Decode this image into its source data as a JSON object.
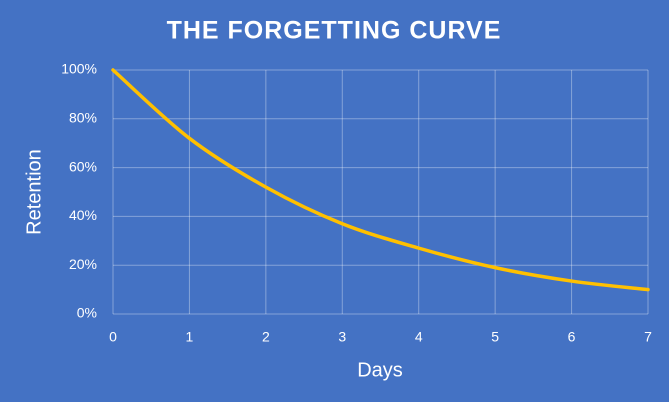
{
  "chart_data": {
    "type": "line",
    "title": "THE FORGETTING CURVE",
    "x_label": "Days",
    "y_label": "Retention",
    "x": [
      0,
      1,
      2,
      3,
      4,
      5,
      6,
      7
    ],
    "series": [
      {
        "name": "Retention",
        "color": "#ffc000",
        "values": [
          100,
          72,
          52,
          37,
          27,
          19,
          13.5,
          10
        ]
      }
    ],
    "xlim": [
      0,
      7
    ],
    "xticks": [
      0,
      1,
      2,
      3,
      4,
      5,
      6,
      7
    ],
    "ylim": [
      0,
      100
    ],
    "yticks": [
      {
        "value": 0,
        "label": "0%"
      },
      {
        "value": 20,
        "label": "20%"
      },
      {
        "value": 40,
        "label": "40%"
      },
      {
        "value": 60,
        "label": "60%"
      },
      {
        "value": 80,
        "label": "80%"
      },
      {
        "value": 100,
        "label": "100%"
      }
    ],
    "grid": true,
    "background": "#4472c4"
  }
}
